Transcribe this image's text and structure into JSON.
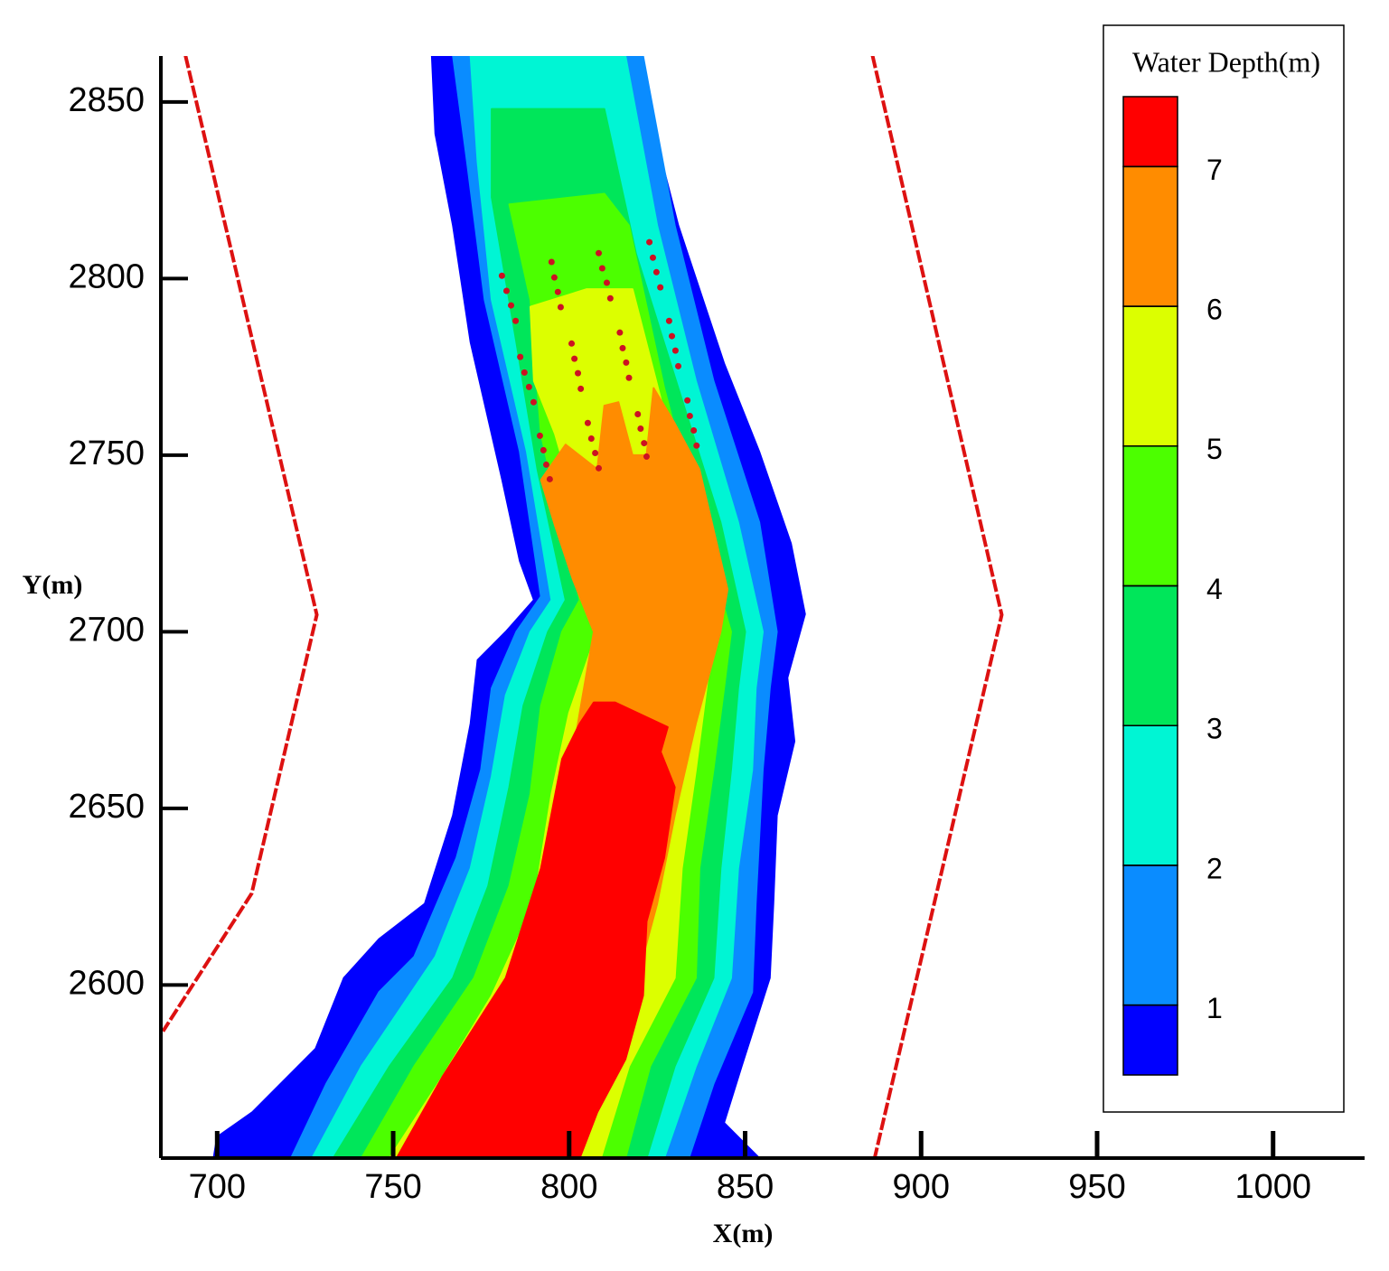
{
  "chart_data": {
    "type": "contour",
    "xlabel": "X(m)",
    "ylabel": "Y(m)",
    "xlim": [
      684,
      1026
    ],
    "ylim": [
      2551,
      2863
    ],
    "xticks": [
      700,
      750,
      800,
      850,
      900,
      950,
      1000
    ],
    "yticks": [
      2600,
      2650,
      2700,
      2750,
      2800,
      2850
    ],
    "colorbar": {
      "title": "Water Depth(m)",
      "clim": [
        0.5,
        7.5
      ],
      "levels": [
        1,
        2,
        3,
        4,
        5,
        6,
        7
      ],
      "colors": [
        "#0000ff",
        "#0a8cff",
        "#00f5d4",
        "#00e65a",
        "#4cff00",
        "#dcff00",
        "#ff8c00",
        "#ff0000"
      ]
    },
    "contours": [
      {
        "color": "#0000ff",
        "x": [
          761,
          762,
          767,
          772,
          781,
          786,
          790,
          782,
          774,
          772,
          767,
          759,
          746,
          736,
          728,
          710,
          700,
          699,
          854,
          844,
          849,
          857,
          858,
          859,
          864,
          862,
          867,
          863,
          854,
          844,
          831,
          823,
          819
        ],
        "y": [
          2863,
          2841,
          2815,
          2782,
          2743,
          2720,
          2709,
          2700,
          2692,
          2674,
          2648,
          2623,
          2613,
          2602,
          2582,
          2564,
          2557,
          2551,
          2551,
          2561,
          2577,
          2602,
          2623,
          2648,
          2669,
          2687,
          2705,
          2725,
          2751,
          2776,
          2815,
          2846,
          2863
        ]
      },
      {
        "color": "#0a8cff",
        "x": [
          767,
          771,
          776,
          786,
          792,
          785,
          778,
          775,
          768,
          756,
          746,
          731,
          721,
          834,
          841,
          852,
          853,
          855,
          857,
          859,
          854,
          841,
          830,
          821
        ],
        "y": [
          2863,
          2833,
          2794,
          2751,
          2710,
          2700,
          2684,
          2661,
          2636,
          2608,
          2598,
          2572,
          2551,
          2551,
          2572,
          2598,
          2623,
          2661,
          2684,
          2700,
          2731,
          2771,
          2815,
          2863
        ]
      },
      {
        "color": "#00f5d4",
        "x": [
          772,
          774,
          778,
          788,
          795,
          789,
          782,
          778,
          772,
          762,
          741,
          727,
          827,
          836,
          846,
          848,
          852,
          853,
          855,
          848,
          836,
          825,
          816
        ],
        "y": [
          2863,
          2833,
          2794,
          2751,
          2709,
          2700,
          2682,
          2659,
          2633,
          2608,
          2577,
          2551,
          2551,
          2577,
          2602,
          2633,
          2661,
          2684,
          2700,
          2731,
          2771,
          2815,
          2863
        ]
      },
      {
        "color": "#00e65a",
        "x": [
          778,
          778,
          785,
          791,
          799,
          794,
          787,
          783,
          777,
          767,
          749,
          733,
          822,
          830,
          841,
          843,
          846,
          848,
          850,
          843,
          831,
          819,
          810
        ],
        "y": [
          2848,
          2823,
          2782,
          2746,
          2709,
          2700,
          2679,
          2656,
          2628,
          2602,
          2577,
          2551,
          2551,
          2577,
          2602,
          2633,
          2661,
          2684,
          2700,
          2731,
          2769,
          2807,
          2848
        ]
      },
      {
        "color": "#4cff00",
        "x": [
          783,
          789,
          792,
          803,
          798,
          792,
          789,
          783,
          773,
          756,
          741,
          816,
          823,
          836,
          837,
          841,
          844,
          846,
          837,
          827,
          817,
          810
        ],
        "y": [
          2821,
          2794,
          2756,
          2709,
          2700,
          2679,
          2654,
          2628,
          2602,
          2577,
          2551,
          2551,
          2577,
          2602,
          2633,
          2661,
          2684,
          2700,
          2731,
          2769,
          2815,
          2824
        ]
      },
      {
        "color": "#dcff00",
        "x": [
          789,
          790,
          796,
          805,
          808,
          800,
          795,
          790,
          778,
          764,
          749,
          809,
          817,
          830,
          832,
          836,
          839,
          841,
          834,
          826,
          818,
          805
        ],
        "y": [
          2792,
          2771,
          2756,
          2725,
          2700,
          2677,
          2654,
          2623,
          2597,
          2574,
          2551,
          2551,
          2577,
          2602,
          2633,
          2661,
          2684,
          2700,
          2734,
          2766,
          2797,
          2797
        ]
      },
      {
        "color": "#ff8c00",
        "x": [
          792,
          799,
          808,
          810,
          814,
          818,
          822,
          824,
          830,
          837,
          845,
          843,
          836,
          830,
          825,
          818,
          809,
          803,
          755,
          772,
          785,
          792,
          798,
          803,
          807,
          801,
          796
        ],
        "y": [
          2743,
          2753,
          2746,
          2764,
          2765,
          2750,
          2750,
          2769,
          2759,
          2746,
          2712,
          2700,
          2674,
          2648,
          2623,
          2597,
          2574,
          2551,
          2551,
          2577,
          2597,
          2623,
          2648,
          2677,
          2700,
          2715,
          2730
        ]
      },
      {
        "color": "#ff0000",
        "x": [
          751,
          764,
          782,
          792,
          798,
          803,
          807,
          813,
          828,
          826,
          830,
          827,
          822,
          821,
          816,
          808,
          803
        ],
        "y": [
          2551,
          2574,
          2602,
          2633,
          2664,
          2674,
          2680,
          2680,
          2673,
          2666,
          2656,
          2636,
          2618,
          2597,
          2579,
          2564,
          2551
        ]
      }
    ],
    "lines": [
      {
        "color": "#dd1111",
        "x": [
          691.0,
          728.3,
          709.8,
          684.6
        ],
        "y": [
          2863.1,
          2704.8,
          2625.9,
          2586.9
        ]
      },
      {
        "color": "#dd1111",
        "x": [
          886.2,
          922.9,
          886.7
        ],
        "y": [
          2863.1,
          2704.8,
          2550.6
        ]
      }
    ],
    "markers": {
      "color": "#cc1122",
      "x": [
        780.9,
        782.2,
        783.5,
        784.8,
        795.0,
        795.8,
        796.8,
        797.6,
        808.4,
        809.4,
        810.7,
        811.7,
        822.8,
        823.8,
        824.8,
        825.9,
        786.1,
        787.3,
        788.6,
        789.9,
        800.7,
        801.5,
        802.5,
        803.3,
        814.4,
        815.2,
        816.2,
        817.0,
        828.4,
        829.2,
        830.2,
        831.0,
        791.7,
        792.7,
        793.5,
        794.5,
        805.3,
        806.3,
        807.4,
        808.4,
        819.5,
        820.3,
        821.3,
        822.0,
        833.6,
        834.3,
        835.4,
        836.2
      ],
      "y": [
        2800.8,
        2796.5,
        2792.4,
        2788.0,
        2804.7,
        2800.3,
        2796.2,
        2791.9,
        2807.2,
        2802.9,
        2798.8,
        2794.4,
        2810.3,
        2805.9,
        2801.8,
        2797.5,
        2777.8,
        2773.4,
        2769.3,
        2765.0,
        2781.6,
        2777.3,
        2773.2,
        2768.8,
        2784.7,
        2780.3,
        2776.2,
        2771.9,
        2788.0,
        2783.7,
        2779.6,
        2775.2,
        2755.5,
        2751.4,
        2747.3,
        2743.2,
        2759.1,
        2754.7,
        2750.6,
        2746.3,
        2761.6,
        2757.5,
        2753.4,
        2749.6,
        2765.5,
        2761.1,
        2757.0,
        2752.7
      ]
    }
  }
}
